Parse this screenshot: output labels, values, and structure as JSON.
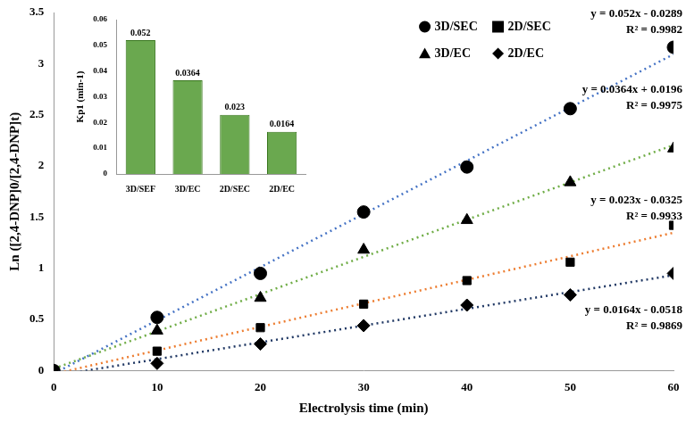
{
  "chart_data": [
    {
      "type": "scatter",
      "x_label": "Electrolysis time (min)",
      "y_label": "Ln ([2,4-DNP]0/[2,4-DNP]t)",
      "x": [
        0,
        10,
        20,
        30,
        40,
        50,
        60
      ],
      "series": [
        {
          "name": "3D/SEC",
          "color": "#4472c4",
          "marker": "circle",
          "line_style": "dotted",
          "values": [
            0,
            0.52,
            0.95,
            1.55,
            1.99,
            2.56,
            3.16
          ],
          "trendline": {
            "slope": 0.052,
            "intercept": -0.0289,
            "equation": "y = 0.052x - 0.0289",
            "r_squared": "R² = 0.9982"
          }
        },
        {
          "name": "2D/SEC",
          "color": "#ed7d31",
          "marker": "square",
          "line_style": "dotted",
          "values": [
            0,
            0.19,
            0.42,
            0.65,
            0.88,
            1.06,
            1.42
          ],
          "trendline": {
            "slope": 0.023,
            "intercept": -0.0325,
            "equation": "y = 0.023x - 0.0325",
            "r_squared": "R² = 0.9933"
          }
        },
        {
          "name": "3D/EC",
          "color": "#70ad47",
          "marker": "triangle",
          "line_style": "dotted",
          "values": [
            0,
            0.39,
            0.71,
            1.18,
            1.47,
            1.84,
            2.17
          ],
          "trendline": {
            "slope": 0.0364,
            "intercept": 0.0196,
            "equation": "y = 0.0364x + 0.0196",
            "r_squared": "R² = 0.9975"
          }
        },
        {
          "name": "2D/EC",
          "color": "#203864",
          "marker": "diamond",
          "line_style": "dotted",
          "values": [
            0,
            0.07,
            0.26,
            0.44,
            0.64,
            0.74,
            0.95
          ],
          "trendline": {
            "slope": 0.0164,
            "intercept": -0.0518,
            "equation": "y = 0.0164x - 0.0518",
            "r_squared": "R² = 0.9869"
          }
        }
      ],
      "xlim": [
        0,
        60
      ],
      "xticks": [
        0,
        10,
        20,
        30,
        40,
        50,
        60
      ],
      "ylim": [
        0,
        3.5
      ],
      "yticks": [
        0,
        0.5,
        1,
        1.5,
        2,
        2.5,
        3,
        3.5
      ],
      "grid": false,
      "legend": "top"
    },
    {
      "type": "bar",
      "y_label": "Kp1 (min-1)",
      "categories": [
        "3D/SEF",
        "3D/EC",
        "2D/SEC",
        "2D/EC"
      ],
      "values": [
        0.052,
        0.0364,
        0.023,
        0.0164
      ],
      "color": "#6aa84f",
      "ylim": [
        0,
        0.06
      ],
      "yticks": [
        0,
        0.01,
        0.02,
        0.03,
        0.04,
        0.05,
        0.06
      ],
      "grid": false,
      "data_labels": true
    }
  ]
}
